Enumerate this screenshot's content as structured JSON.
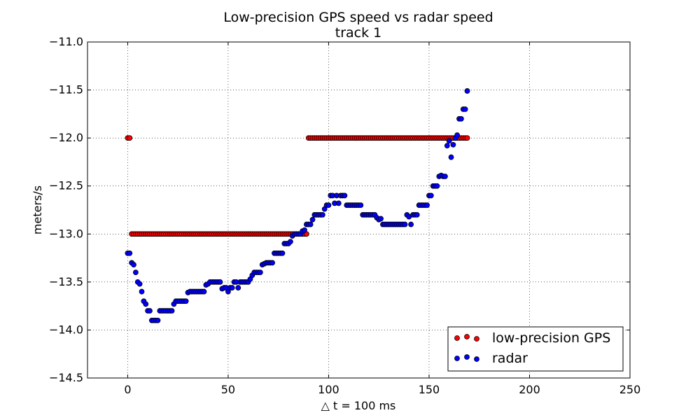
{
  "chart_data": {
    "type": "scatter",
    "title": "Low-precision GPS speed vs radar speed",
    "subtitle": "track 1",
    "xlabel": "△ t = 100 ms",
    "ylabel": "meters/s",
    "xlim": [
      -20,
      250
    ],
    "ylim": [
      -14.5,
      -11.0
    ],
    "xticks": [
      0,
      50,
      100,
      150,
      200,
      250
    ],
    "yticks": [
      -14.5,
      -14.0,
      -13.5,
      -13.0,
      -12.5,
      -12.0,
      -11.5,
      -11.0
    ],
    "xtick_labels": [
      "0",
      "50",
      "100",
      "150",
      "200",
      "250"
    ],
    "ytick_labels": [
      "−14.5",
      "−14.0",
      "−13.5",
      "−13.0",
      "−12.5",
      "−12.0",
      "−11.5",
      "−11.0"
    ],
    "grid": true,
    "legend_position": "bottom-right",
    "series": [
      {
        "name": "low-precision GPS",
        "color": "#ff0000",
        "segments": [
          {
            "x_start": 0,
            "x_end": 1,
            "y": -12.0
          },
          {
            "x_start": 2,
            "x_end": 89,
            "y": -13.0
          },
          {
            "x_start": 90,
            "x_end": 169,
            "y": -12.0
          }
        ]
      },
      {
        "name": "radar",
        "color": "#0000ff",
        "points": [
          [
            0,
            -13.2
          ],
          [
            1,
            -13.2
          ],
          [
            2,
            -13.3
          ],
          [
            3,
            -13.32
          ],
          [
            4,
            -13.4
          ],
          [
            5,
            -13.5
          ],
          [
            6,
            -13.52
          ],
          [
            7,
            -13.6
          ],
          [
            8,
            -13.7
          ],
          [
            9,
            -13.73
          ],
          [
            10,
            -13.8
          ],
          [
            11,
            -13.8
          ],
          [
            12,
            -13.9
          ],
          [
            13,
            -13.9
          ],
          [
            14,
            -13.9
          ],
          [
            15,
            -13.9
          ],
          [
            16,
            -13.8
          ],
          [
            17,
            -13.8
          ],
          [
            18,
            -13.8
          ],
          [
            19,
            -13.8
          ],
          [
            20,
            -13.8
          ],
          [
            21,
            -13.8
          ],
          [
            22,
            -13.8
          ],
          [
            23,
            -13.73
          ],
          [
            24,
            -13.7
          ],
          [
            25,
            -13.7
          ],
          [
            26,
            -13.7
          ],
          [
            27,
            -13.7
          ],
          [
            28,
            -13.7
          ],
          [
            29,
            -13.7
          ],
          [
            30,
            -13.61
          ],
          [
            31,
            -13.6
          ],
          [
            32,
            -13.6
          ],
          [
            33,
            -13.6
          ],
          [
            34,
            -13.6
          ],
          [
            35,
            -13.6
          ],
          [
            36,
            -13.6
          ],
          [
            37,
            -13.6
          ],
          [
            38,
            -13.6
          ],
          [
            39,
            -13.53
          ],
          [
            40,
            -13.52
          ],
          [
            41,
            -13.5
          ],
          [
            42,
            -13.5
          ],
          [
            43,
            -13.5
          ],
          [
            44,
            -13.5
          ],
          [
            45,
            -13.5
          ],
          [
            46,
            -13.5
          ],
          [
            47,
            -13.57
          ],
          [
            48,
            -13.56
          ],
          [
            49,
            -13.56
          ],
          [
            50,
            -13.6
          ],
          [
            51,
            -13.56
          ],
          [
            52,
            -13.56
          ],
          [
            53,
            -13.5
          ],
          [
            54,
            -13.5
          ],
          [
            55,
            -13.56
          ],
          [
            56,
            -13.5
          ],
          [
            57,
            -13.5
          ],
          [
            58,
            -13.5
          ],
          [
            59,
            -13.5
          ],
          [
            60,
            -13.5
          ],
          [
            61,
            -13.47
          ],
          [
            62,
            -13.43
          ],
          [
            63,
            -13.4
          ],
          [
            64,
            -13.4
          ],
          [
            65,
            -13.4
          ],
          [
            66,
            -13.4
          ],
          [
            67,
            -13.32
          ],
          [
            68,
            -13.31
          ],
          [
            69,
            -13.3
          ],
          [
            70,
            -13.3
          ],
          [
            71,
            -13.3
          ],
          [
            72,
            -13.3
          ],
          [
            73,
            -13.2
          ],
          [
            74,
            -13.2
          ],
          [
            75,
            -13.2
          ],
          [
            76,
            -13.2
          ],
          [
            77,
            -13.2
          ],
          [
            78,
            -13.1
          ],
          [
            79,
            -13.1
          ],
          [
            80,
            -13.1
          ],
          [
            81,
            -13.08
          ],
          [
            82,
            -13.02
          ],
          [
            83,
            -13.0
          ],
          [
            84,
            -13.0
          ],
          [
            85,
            -13.0
          ],
          [
            86,
            -13.0
          ],
          [
            87,
            -12.97
          ],
          [
            88,
            -12.96
          ],
          [
            89,
            -12.9
          ],
          [
            90,
            -12.9
          ],
          [
            91,
            -12.9
          ],
          [
            92,
            -12.85
          ],
          [
            93,
            -12.8
          ],
          [
            94,
            -12.8
          ],
          [
            95,
            -12.8
          ],
          [
            96,
            -12.8
          ],
          [
            97,
            -12.8
          ],
          [
            98,
            -12.74
          ],
          [
            99,
            -12.7
          ],
          [
            100,
            -12.7
          ],
          [
            101,
            -12.6
          ],
          [
            102,
            -12.6
          ],
          [
            103,
            -12.68
          ],
          [
            104,
            -12.6
          ],
          [
            105,
            -12.68
          ],
          [
            106,
            -12.6
          ],
          [
            107,
            -12.6
          ],
          [
            108,
            -12.6
          ],
          [
            109,
            -12.7
          ],
          [
            110,
            -12.7
          ],
          [
            111,
            -12.7
          ],
          [
            112,
            -12.7
          ],
          [
            113,
            -12.7
          ],
          [
            114,
            -12.7
          ],
          [
            115,
            -12.7
          ],
          [
            116,
            -12.7
          ],
          [
            117,
            -12.8
          ],
          [
            118,
            -12.8
          ],
          [
            119,
            -12.8
          ],
          [
            120,
            -12.8
          ],
          [
            121,
            -12.8
          ],
          [
            122,
            -12.8
          ],
          [
            123,
            -12.8
          ],
          [
            124,
            -12.83
          ],
          [
            125,
            -12.85
          ],
          [
            126,
            -12.84
          ],
          [
            127,
            -12.9
          ],
          [
            128,
            -12.9
          ],
          [
            129,
            -12.9
          ],
          [
            130,
            -12.9
          ],
          [
            131,
            -12.9
          ],
          [
            132,
            -12.9
          ],
          [
            133,
            -12.9
          ],
          [
            134,
            -12.9
          ],
          [
            135,
            -12.9
          ],
          [
            136,
            -12.9
          ],
          [
            137,
            -12.9
          ],
          [
            138,
            -12.9
          ],
          [
            139,
            -12.8
          ],
          [
            140,
            -12.82
          ],
          [
            141,
            -12.9
          ],
          [
            142,
            -12.8
          ],
          [
            143,
            -12.8
          ],
          [
            144,
            -12.8
          ],
          [
            145,
            -12.7
          ],
          [
            146,
            -12.7
          ],
          [
            147,
            -12.7
          ],
          [
            148,
            -12.7
          ],
          [
            149,
            -12.7
          ],
          [
            150,
            -12.6
          ],
          [
            151,
            -12.6
          ],
          [
            152,
            -12.5
          ],
          [
            153,
            -12.5
          ],
          [
            154,
            -12.5
          ],
          [
            155,
            -12.4
          ],
          [
            156,
            -12.39
          ],
          [
            157,
            -12.4
          ],
          [
            158,
            -12.4
          ],
          [
            159,
            -12.08
          ],
          [
            160,
            -12.03
          ],
          [
            161,
            -12.2
          ],
          [
            162,
            -12.07
          ],
          [
            163,
            -12.0
          ],
          [
            164,
            -11.97
          ],
          [
            165,
            -11.8
          ],
          [
            166,
            -11.8
          ],
          [
            167,
            -11.7
          ],
          [
            168,
            -11.7
          ],
          [
            169,
            -11.51
          ]
        ]
      }
    ]
  }
}
